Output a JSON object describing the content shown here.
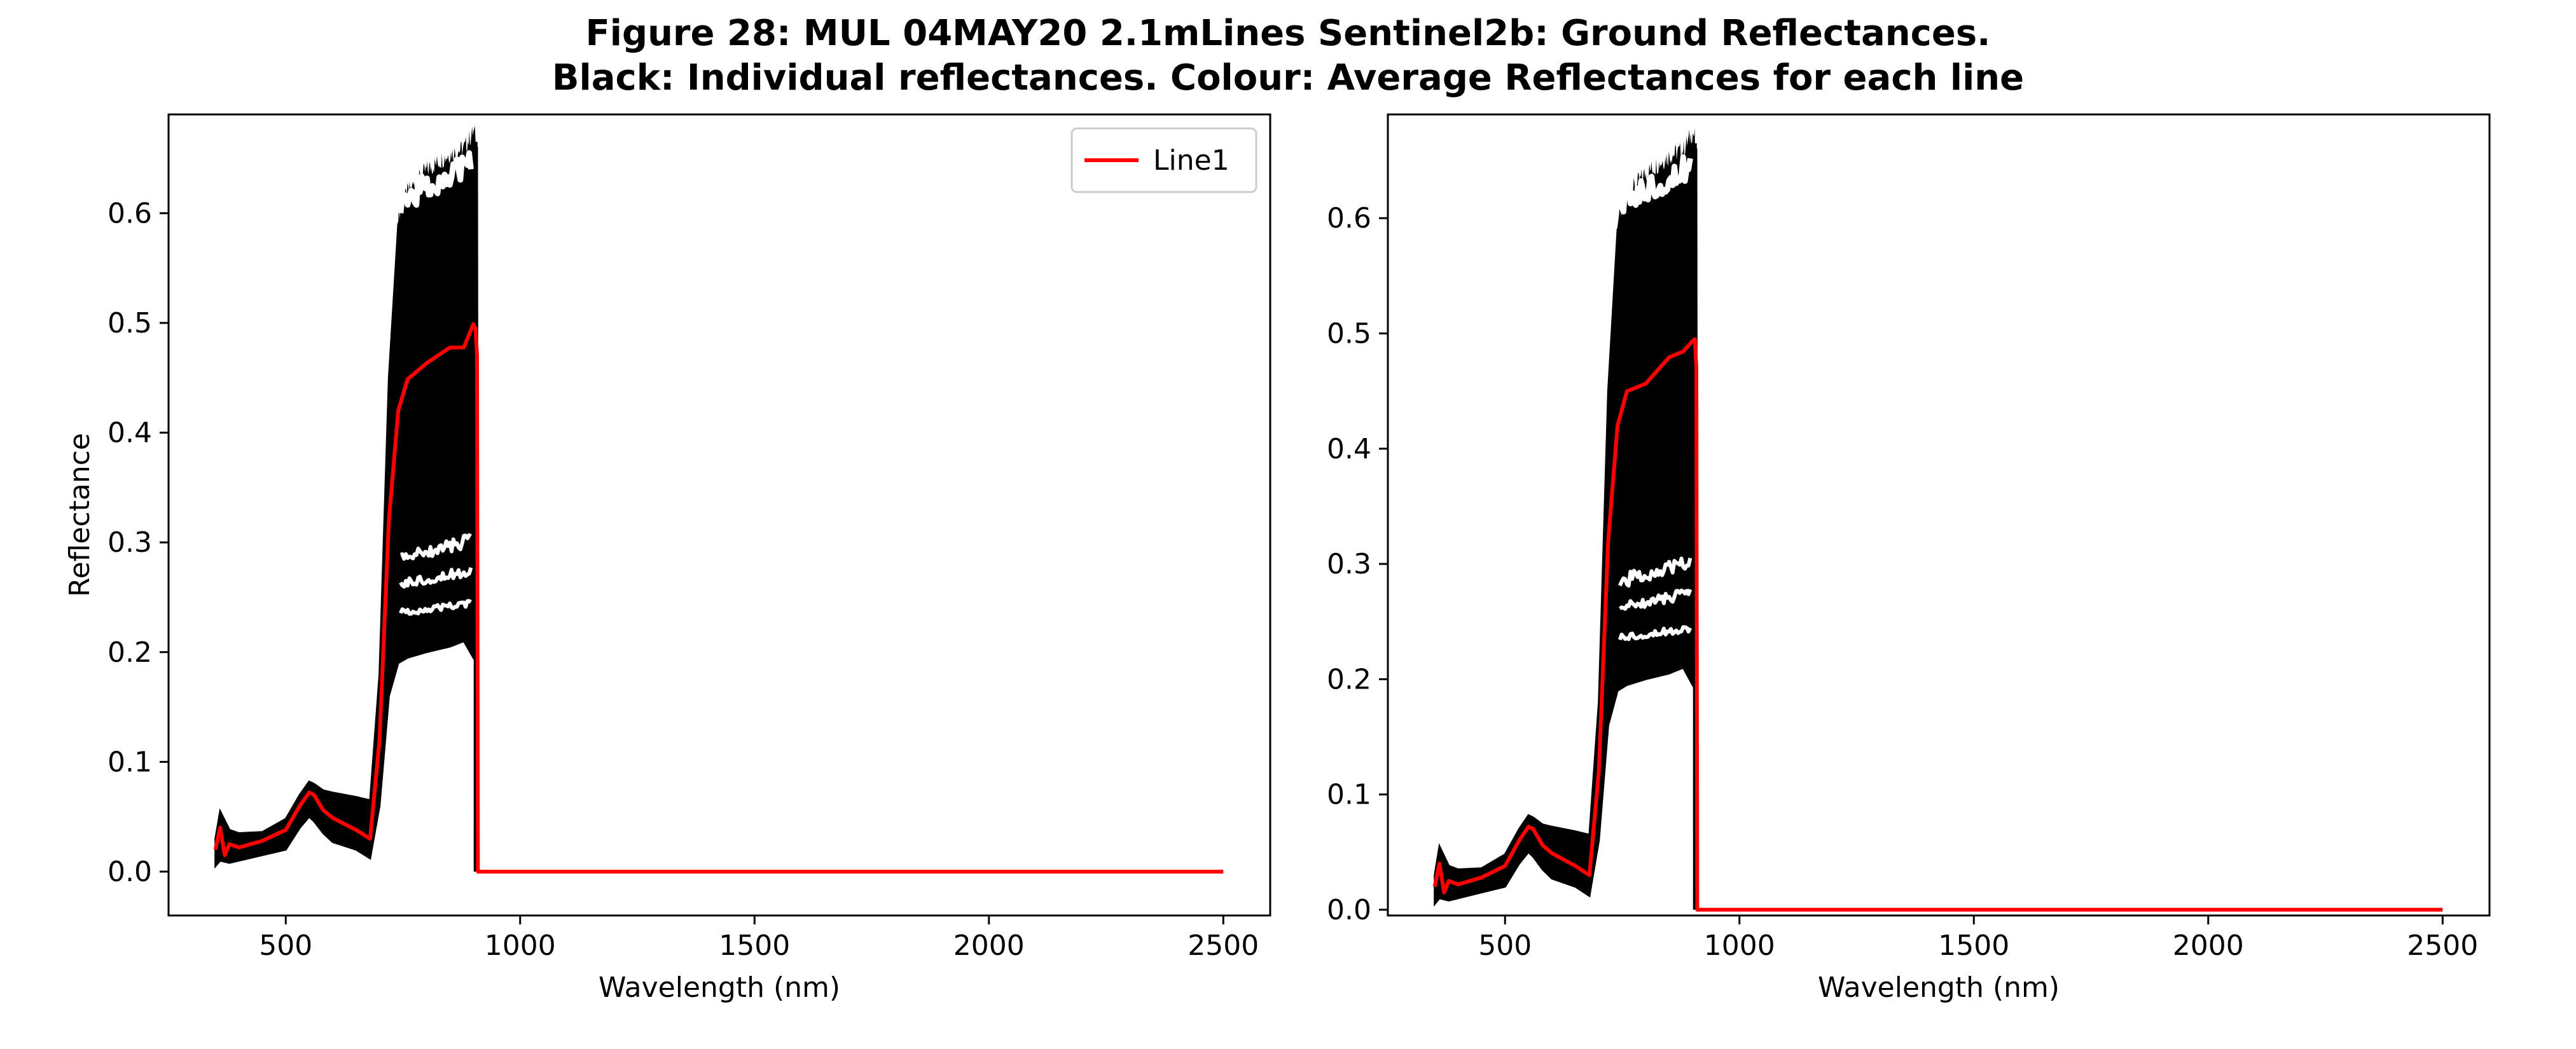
{
  "figure": {
    "title_line1": "Figure 28: MUL 04MAY20 2.1mLines Sentinel2b: Ground Reflectances.",
    "title_line2": "Black: Individual reflectances. Colour: Average Reflectances for each line"
  },
  "colors": {
    "individual": "#000000",
    "average": "#ff0000",
    "axes": "#000000"
  },
  "chart_data": [
    {
      "type": "line",
      "xlabel": "Wavelength (nm)",
      "ylabel": "Reflectance",
      "xlim": [
        250,
        2600
      ],
      "ylim": [
        -0.04,
        0.69
      ],
      "xticks": [
        500,
        1000,
        1500,
        2000,
        2500
      ],
      "yticks": [
        0.0,
        0.1,
        0.2,
        0.3,
        0.4,
        0.5,
        0.6
      ],
      "grid": false,
      "legend": {
        "position": "top-right",
        "entries": [
          "Line1"
        ]
      },
      "series": [
        {
          "name": "Line1",
          "x": [
            350,
            360,
            370,
            380,
            400,
            450,
            500,
            530,
            550,
            560,
            580,
            600,
            650,
            680,
            700,
            720,
            740,
            760,
            800,
            850,
            880,
            900,
            905,
            908,
            910,
            1000,
            1500,
            2000,
            2500
          ],
          "values": [
            0.02,
            0.04,
            0.015,
            0.025,
            0.022,
            0.028,
            0.038,
            0.06,
            0.072,
            0.07,
            0.056,
            0.049,
            0.038,
            0.03,
            0.12,
            0.32,
            0.42,
            0.45,
            0.46,
            0.475,
            0.48,
            0.495,
            0.495,
            0.47,
            0.0,
            0.0,
            0.0,
            0.0,
            0.0
          ]
        }
      ],
      "envelope": {
        "x": [
          350,
          360,
          380,
          400,
          450,
          500,
          530,
          550,
          560,
          580,
          600,
          650,
          680,
          700,
          720,
          740,
          760,
          800,
          850,
          880,
          900,
          908,
          910
        ],
        "upper": [
          0.03,
          0.055,
          0.038,
          0.035,
          0.036,
          0.048,
          0.07,
          0.082,
          0.08,
          0.074,
          0.072,
          0.068,
          0.065,
          0.18,
          0.45,
          0.59,
          0.61,
          0.63,
          0.645,
          0.65,
          0.665,
          0.66,
          0.0
        ],
        "lower": [
          0.005,
          0.01,
          0.008,
          0.01,
          0.015,
          0.02,
          0.04,
          0.05,
          0.046,
          0.035,
          0.027,
          0.02,
          0.012,
          0.06,
          0.16,
          0.19,
          0.195,
          0.2,
          0.205,
          0.21,
          0.195,
          0.19,
          0.0
        ]
      }
    },
    {
      "type": "line",
      "xlabel": "Wavelength (nm)",
      "ylabel": "",
      "xlim": [
        250,
        2600
      ],
      "ylim": [
        -0.005,
        0.69
      ],
      "xticks": [
        500,
        1000,
        1500,
        2000,
        2500
      ],
      "yticks": [
        0.0,
        0.1,
        0.2,
        0.3,
        0.4,
        0.5,
        0.6
      ],
      "grid": false,
      "series": [
        {
          "x": [
            350,
            360,
            370,
            380,
            400,
            450,
            500,
            530,
            550,
            560,
            580,
            600,
            650,
            680,
            700,
            720,
            740,
            760,
            800,
            850,
            880,
            900,
            905,
            908,
            910,
            1000,
            1500,
            2000,
            2500
          ],
          "values": [
            0.02,
            0.04,
            0.015,
            0.025,
            0.022,
            0.028,
            0.038,
            0.06,
            0.072,
            0.07,
            0.056,
            0.049,
            0.038,
            0.03,
            0.12,
            0.32,
            0.42,
            0.45,
            0.46,
            0.475,
            0.48,
            0.495,
            0.495,
            0.47,
            0.0,
            0.0,
            0.0,
            0.0,
            0.0
          ]
        }
      ],
      "envelope": {
        "x": [
          350,
          360,
          380,
          400,
          450,
          500,
          530,
          550,
          560,
          580,
          600,
          650,
          680,
          700,
          720,
          740,
          760,
          800,
          850,
          880,
          900,
          908,
          910
        ],
        "upper": [
          0.03,
          0.055,
          0.038,
          0.035,
          0.036,
          0.048,
          0.07,
          0.082,
          0.08,
          0.074,
          0.072,
          0.068,
          0.065,
          0.18,
          0.45,
          0.59,
          0.61,
          0.63,
          0.645,
          0.65,
          0.665,
          0.66,
          0.0
        ],
        "lower": [
          0.005,
          0.01,
          0.008,
          0.01,
          0.015,
          0.02,
          0.04,
          0.05,
          0.046,
          0.035,
          0.027,
          0.02,
          0.012,
          0.06,
          0.16,
          0.19,
          0.195,
          0.2,
          0.205,
          0.21,
          0.195,
          0.19,
          0.0
        ]
      }
    }
  ]
}
